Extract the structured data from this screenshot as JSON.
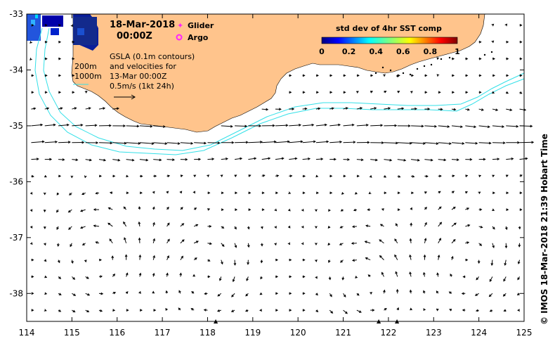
{
  "map": {
    "date": "18-Mar-2018",
    "time": "00:00Z",
    "legend": {
      "glider": "Glider",
      "argo": "Argo",
      "glider_color": "#ff22ff",
      "argo_color": "#ff22ff"
    },
    "contours": {
      "shallow": "200m",
      "deep": "1000m",
      "color": "#33e0e8"
    },
    "gsla_note": [
      "GSLA (0.1m contours)",
      "and velocities for",
      "13-Mar 00:00Z",
      "0.5m/s (1kt 24h)"
    ],
    "colorbar": {
      "title": "std dev of 4hr SST comp",
      "ticks": [
        "0",
        "0.2",
        "0.4",
        "0.6",
        "0.8",
        "1"
      ],
      "colors": [
        "#00007f",
        "#0000ff",
        "#007fff",
        "#00ffff",
        "#7fff7f",
        "#ffff00",
        "#ff7f00",
        "#ff0000",
        "#7f0000"
      ]
    },
    "x_ticks": [
      "114",
      "115",
      "116",
      "117",
      "118",
      "119",
      "120",
      "121",
      "122",
      "123",
      "124",
      "125"
    ],
    "y_ticks": [
      "-33",
      "-34",
      "-35",
      "-36",
      "-37",
      "-38"
    ],
    "x_range": [
      114,
      125
    ],
    "y_range": [
      -38.5,
      -33
    ],
    "credit": "© IMOS 18-Mar-2018 21:39 Hobart Time",
    "land_color": "#ffc48c"
  }
}
